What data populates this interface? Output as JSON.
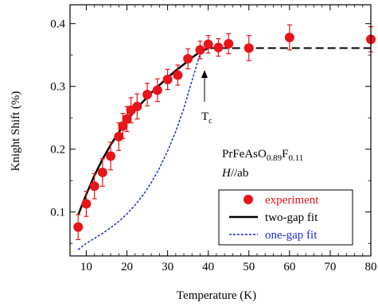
{
  "chart_data": {
    "type": "scatter",
    "xlabel": "Temperature (K)",
    "ylabel": "Knight Shift (%)",
    "xlim": [
      6,
      80
    ],
    "ylim": [
      0.03,
      0.43
    ],
    "x_ticks": [
      10,
      20,
      30,
      40,
      50,
      60,
      70,
      80
    ],
    "y_ticks": [
      0.1,
      0.2,
      0.3,
      0.4
    ],
    "x_tick_labels": [
      "10",
      "20",
      "30",
      "40",
      "50",
      "60",
      "70",
      "80"
    ],
    "y_tick_labels": [
      "0.1",
      "0.2",
      "0.3",
      "0.4"
    ],
    "grid": false,
    "legend_position": "bottom-right",
    "series": [
      {
        "name": "experiment",
        "kind": "points",
        "color": "#e8141a",
        "x": [
          8,
          10,
          12,
          14,
          16,
          18,
          19,
          20,
          21,
          22.5,
          25,
          27.5,
          30,
          32.5,
          35,
          38,
          40,
          42.5,
          45,
          50,
          60,
          80
        ],
        "y": [
          0.076,
          0.113,
          0.141,
          0.163,
          0.189,
          0.22,
          0.237,
          0.248,
          0.262,
          0.268,
          0.287,
          0.294,
          0.311,
          0.318,
          0.344,
          0.358,
          0.367,
          0.362,
          0.368,
          0.361,
          0.378,
          0.375
        ],
        "err": [
          0.02,
          0.02,
          0.02,
          0.022,
          0.022,
          0.022,
          0.02,
          0.02,
          0.02,
          0.02,
          0.018,
          0.018,
          0.016,
          0.016,
          0.016,
          0.014,
          0.014,
          0.014,
          0.016,
          0.02,
          0.02,
          0.02
        ]
      },
      {
        "name": "two-gap fit",
        "kind": "line",
        "color": "#000000",
        "x": [
          8,
          10,
          12,
          14,
          16,
          18,
          20,
          22,
          24,
          26,
          28,
          30,
          32,
          34,
          36,
          38,
          40
        ],
        "y": [
          0.095,
          0.128,
          0.158,
          0.184,
          0.207,
          0.227,
          0.245,
          0.262,
          0.276,
          0.29,
          0.302,
          0.314,
          0.325,
          0.335,
          0.346,
          0.355,
          0.361
        ]
      },
      {
        "name": "",
        "kind": "dashed-line",
        "color": "#000000",
        "x": [
          40,
          80
        ],
        "y": [
          0.361,
          0.361
        ]
      },
      {
        "name": "one-gap fit",
        "kind": "dotted-line",
        "color": "#1c2fd6",
        "x": [
          8,
          10,
          12,
          14,
          16,
          18,
          20,
          22,
          24,
          26,
          28,
          30,
          32,
          34,
          36,
          38
        ],
        "y": [
          0.04,
          0.05,
          0.058,
          0.066,
          0.075,
          0.085,
          0.097,
          0.111,
          0.127,
          0.147,
          0.17,
          0.197,
          0.228,
          0.265,
          0.309,
          0.352
        ]
      }
    ],
    "annotations": {
      "tc_label": "T",
      "tc_sub": "c",
      "tc_x": 38.8,
      "compound_main": "PrFeAsO",
      "compound_sub1": "0.89",
      "compound_mid": "F",
      "compound_sub2": "0.11",
      "field_italic": "H",
      "field_rest": "//ab"
    }
  }
}
